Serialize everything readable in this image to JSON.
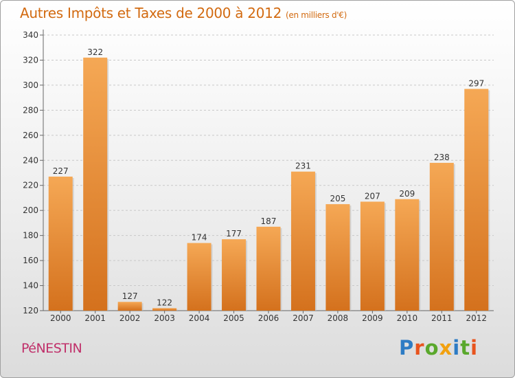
{
  "title": "Autres Impôts et Taxes de 2000 à 2012",
  "subtitle": "(en milliers d'€)",
  "city": "PéNESTIN",
  "logo": {
    "letters": [
      {
        "ch": "P",
        "color": "#2e7cc4"
      },
      {
        "ch": "r",
        "color": "#e8541e"
      },
      {
        "ch": "o",
        "color": "#5aa82c"
      },
      {
        "ch": "x",
        "color": "#f2a10f"
      },
      {
        "ch": "i",
        "color": "#2e7cc4"
      },
      {
        "ch": "t",
        "color": "#5aa82c"
      },
      {
        "ch": "i",
        "color": "#e8541e"
      }
    ]
  },
  "colors": {
    "title": "#d26a10",
    "city": "#c0306a",
    "bar_light": "#f5a855",
    "bar_dark": "#d4711d"
  },
  "chart_data": {
    "type": "bar",
    "categories": [
      "2000",
      "2001",
      "2002",
      "2003",
      "2004",
      "2005",
      "2006",
      "2007",
      "2008",
      "2009",
      "2010",
      "2011",
      "2012"
    ],
    "values": [
      227,
      322,
      127,
      122,
      174,
      177,
      187,
      231,
      205,
      207,
      209,
      238,
      297
    ],
    "ylim": [
      120,
      340
    ],
    "yticks": [
      120,
      140,
      160,
      180,
      200,
      220,
      240,
      260,
      280,
      300,
      320,
      340
    ],
    "grid": "horizontal dashed",
    "title": "Autres Impôts et Taxes de 2000 à 2012",
    "ylabel": "",
    "xlabel": ""
  }
}
